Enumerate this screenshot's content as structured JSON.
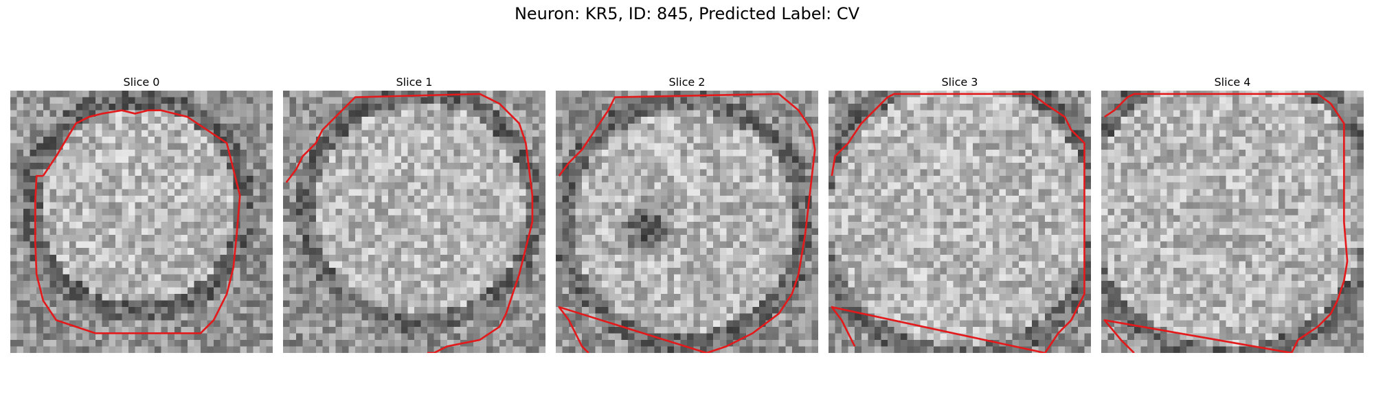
{
  "figure": {
    "title": "Neuron: KR5, ID: 845, Predicted Label: CV",
    "contour_color": "#e31a1c"
  },
  "slices": [
    {
      "label": "Slice 0",
      "grid": 40,
      "bright_center": [
        19.5,
        17.5
      ],
      "bright_radius": 15,
      "dark_spot": null,
      "contour": [
        [
          5,
          13
        ],
        [
          7,
          10
        ],
        [
          10,
          5
        ],
        [
          12,
          4
        ],
        [
          14,
          3.5
        ],
        [
          17,
          3
        ],
        [
          19,
          3.5
        ],
        [
          21,
          3
        ],
        [
          23,
          3
        ],
        [
          27,
          4
        ],
        [
          30,
          6
        ],
        [
          33,
          8
        ],
        [
          34,
          12
        ],
        [
          35,
          16
        ],
        [
          34.5,
          22
        ],
        [
          34,
          27
        ],
        [
          33,
          31
        ],
        [
          31,
          35
        ],
        [
          29,
          37
        ],
        [
          22,
          37
        ],
        [
          18,
          37
        ],
        [
          13,
          37
        ],
        [
          10,
          36
        ],
        [
          7,
          35
        ],
        [
          5,
          32
        ],
        [
          4,
          28
        ],
        [
          3.8,
          23
        ],
        [
          3.8,
          17
        ],
        [
          4,
          13
        ],
        [
          5,
          13
        ]
      ]
    },
    {
      "label": "Slice 1",
      "grid": 40,
      "bright_center": [
        21,
        18
      ],
      "bright_radius": 16,
      "dark_spot": null,
      "contour": [
        [
          0.5,
          14
        ],
        [
          2,
          12
        ],
        [
          3,
          10
        ],
        [
          5,
          8
        ],
        [
          6,
          6
        ],
        [
          8,
          4
        ],
        [
          10,
          2
        ],
        [
          11,
          1
        ],
        [
          30,
          0.5
        ],
        [
          33,
          2
        ],
        [
          36,
          5
        ],
        [
          37,
          8
        ],
        [
          37.5,
          12
        ],
        [
          38,
          16
        ],
        [
          38,
          20
        ],
        [
          37,
          24
        ],
        [
          36,
          28
        ],
        [
          35,
          31
        ],
        [
          34,
          34
        ],
        [
          33,
          36
        ],
        [
          30,
          38
        ],
        [
          25,
          39
        ],
        [
          23,
          40
        ],
        [
          22,
          40
        ]
      ]
    },
    {
      "label": "Slice 2",
      "grid": 40,
      "bright_center": [
        19.5,
        20
      ],
      "bright_radius": 17,
      "dark_spot": [
        14,
        21
      ],
      "contour": [
        [
          0.5,
          13
        ],
        [
          2,
          11
        ],
        [
          4,
          9
        ],
        [
          6,
          6
        ],
        [
          8,
          3
        ],
        [
          9,
          1
        ],
        [
          34,
          0.5
        ],
        [
          37,
          3
        ],
        [
          39,
          6
        ],
        [
          39.5,
          9
        ],
        [
          38,
          22
        ],
        [
          37,
          28
        ],
        [
          36,
          31
        ],
        [
          34,
          34
        ],
        [
          30,
          37
        ],
        [
          26,
          39
        ],
        [
          23,
          40
        ],
        [
          0.5,
          33
        ],
        [
          2,
          35
        ],
        [
          3,
          37
        ],
        [
          4,
          39
        ],
        [
          5,
          40
        ]
      ]
    },
    {
      "label": "Slice 3",
      "grid": 40,
      "bright_center": [
        20,
        19
      ],
      "bright_radius": 20,
      "dark_spot": null,
      "contour": [
        [
          0.5,
          13
        ],
        [
          1,
          10
        ],
        [
          3,
          8
        ],
        [
          5,
          5
        ],
        [
          7,
          3
        ],
        [
          9,
          1
        ],
        [
          10,
          0.5
        ],
        [
          31,
          0.5
        ],
        [
          33,
          2
        ],
        [
          36,
          4
        ],
        [
          37,
          6
        ],
        [
          39,
          8
        ],
        [
          39,
          31
        ],
        [
          37,
          35
        ],
        [
          35,
          37
        ],
        [
          33,
          40
        ],
        [
          0.5,
          33
        ],
        [
          2,
          35
        ],
        [
          3,
          37
        ],
        [
          4,
          39
        ]
      ]
    },
    {
      "label": "Slice 4",
      "grid": 40,
      "bright_center": [
        19.5,
        18
      ],
      "bright_radius": 21,
      "dark_spot": null,
      "contour": [
        [
          0.5,
          4
        ],
        [
          2,
          3
        ],
        [
          4,
          1
        ],
        [
          5,
          0.5
        ],
        [
          9,
          0.5
        ],
        [
          10,
          0.5
        ],
        [
          33,
          0.5
        ],
        [
          35,
          2
        ],
        [
          37,
          5
        ],
        [
          37,
          10
        ],
        [
          37,
          20
        ],
        [
          37.5,
          26
        ],
        [
          37,
          29
        ],
        [
          36,
          32
        ],
        [
          35,
          34
        ],
        [
          33,
          36
        ],
        [
          30,
          38
        ],
        [
          29,
          40
        ],
        [
          0.5,
          35
        ],
        [
          3,
          38
        ],
        [
          5,
          40
        ]
      ]
    }
  ]
}
